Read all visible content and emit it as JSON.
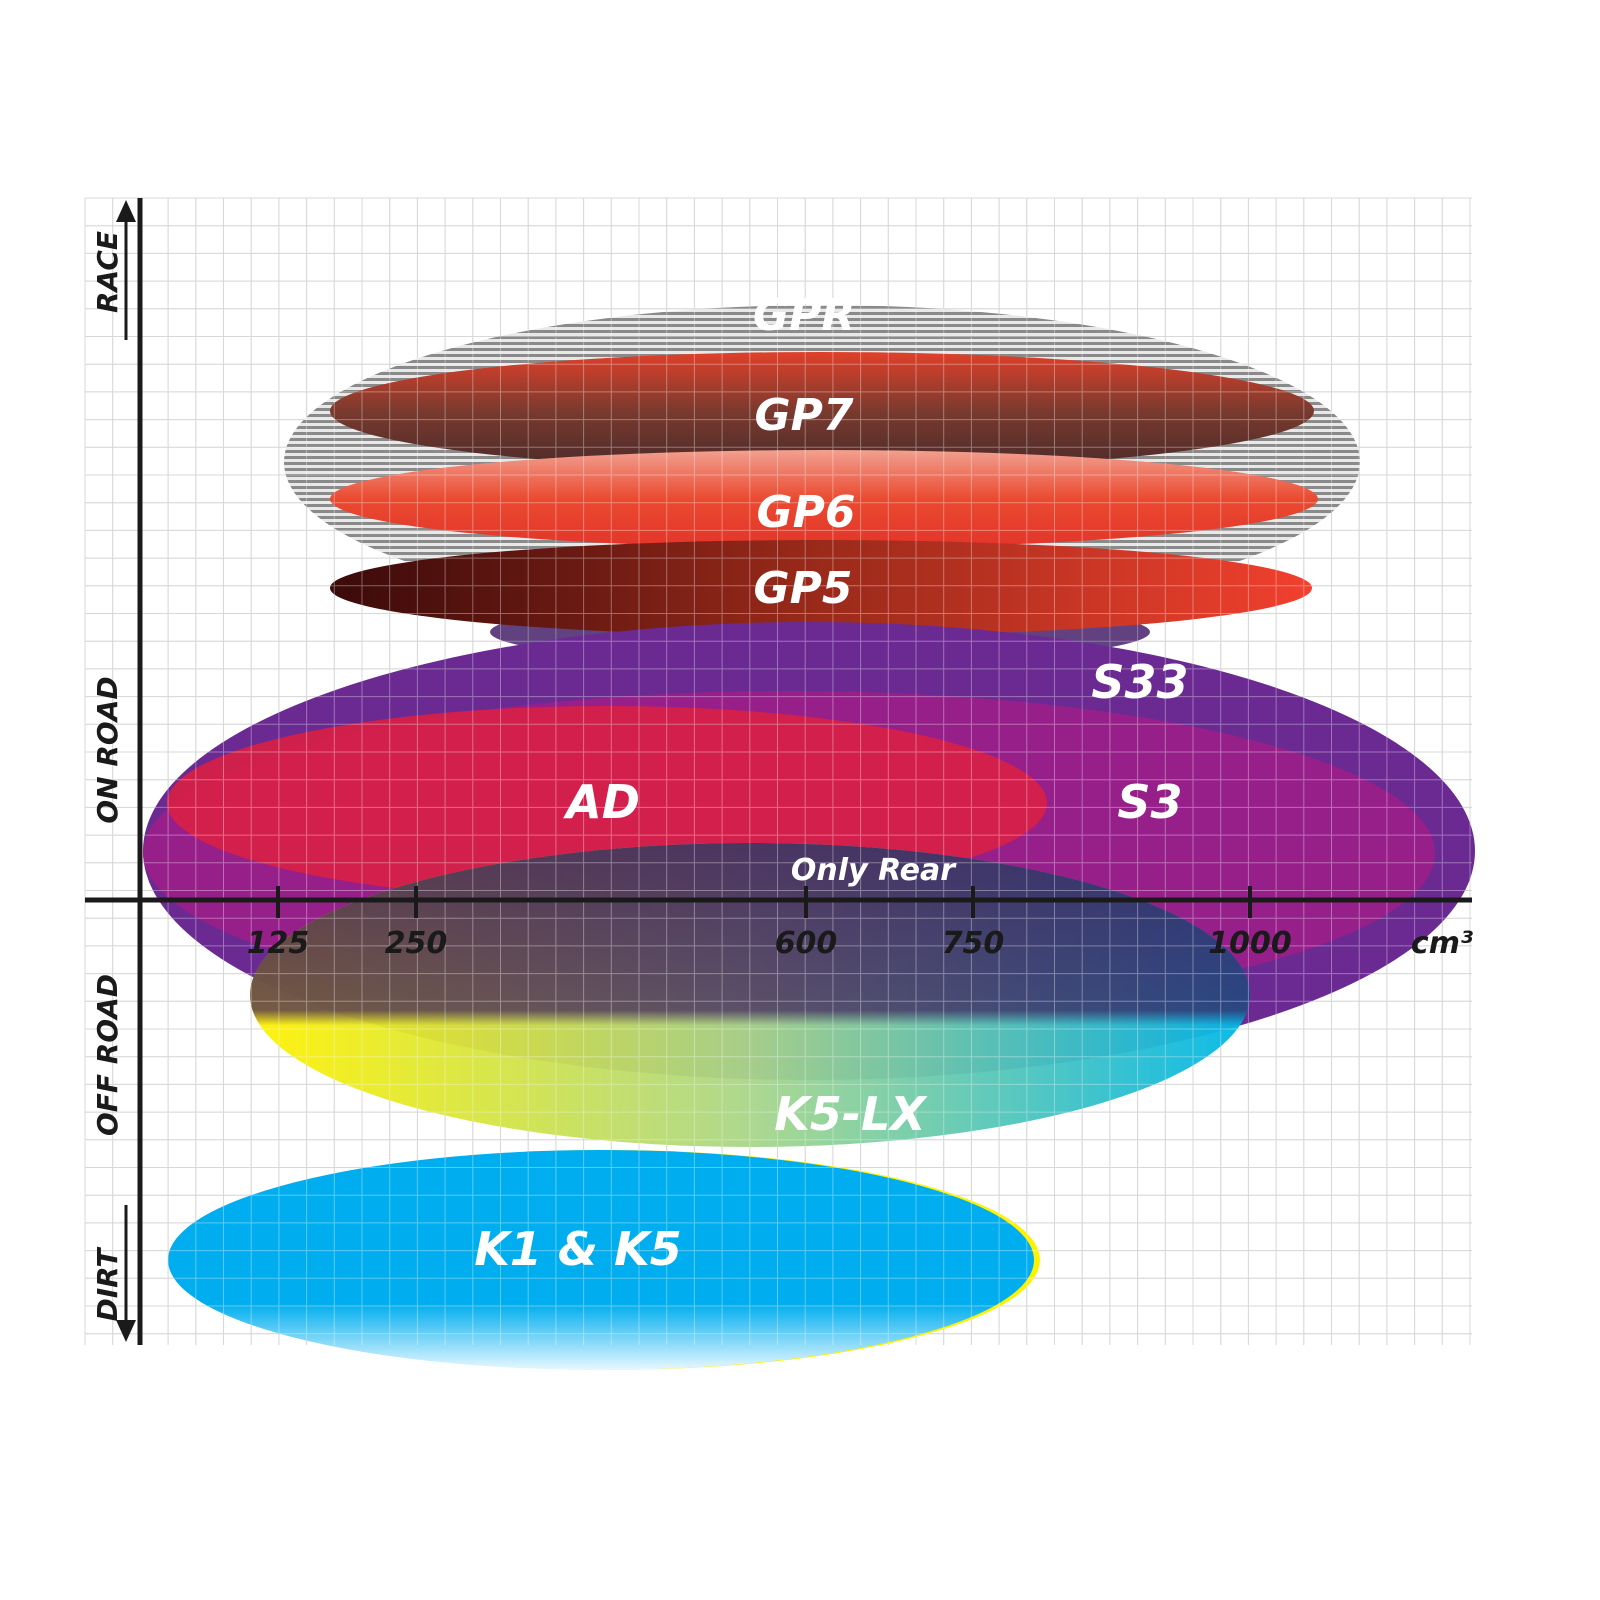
{
  "chart_data": {
    "type": "ellipse-positioning",
    "xlabel": "cm³",
    "x_ticks": [
      "125",
      "250",
      "600",
      "750",
      "1000"
    ],
    "y_labels": [
      "RACE",
      "ON ROAD",
      "OFF ROAD",
      "DIRT"
    ],
    "grid": true,
    "products": [
      {
        "name": "GPR",
        "color": "#9a9a9a"
      },
      {
        "name": "GP7",
        "color": "#8a3a2a"
      },
      {
        "name": "GP6",
        "color": "#e8432e"
      },
      {
        "name": "GP5",
        "color": "#b02a1e"
      },
      {
        "name": "S33",
        "color": "#6a2a92"
      },
      {
        "name": "S3",
        "color": "#9b1e8a"
      },
      {
        "name": "AD",
        "color": "#d81f45"
      },
      {
        "name": "K5-LX",
        "color": "#22bfd8"
      },
      {
        "name": "K1 & K5",
        "color": "#00aeef"
      }
    ],
    "annotations": [
      "Only Rear"
    ]
  }
}
